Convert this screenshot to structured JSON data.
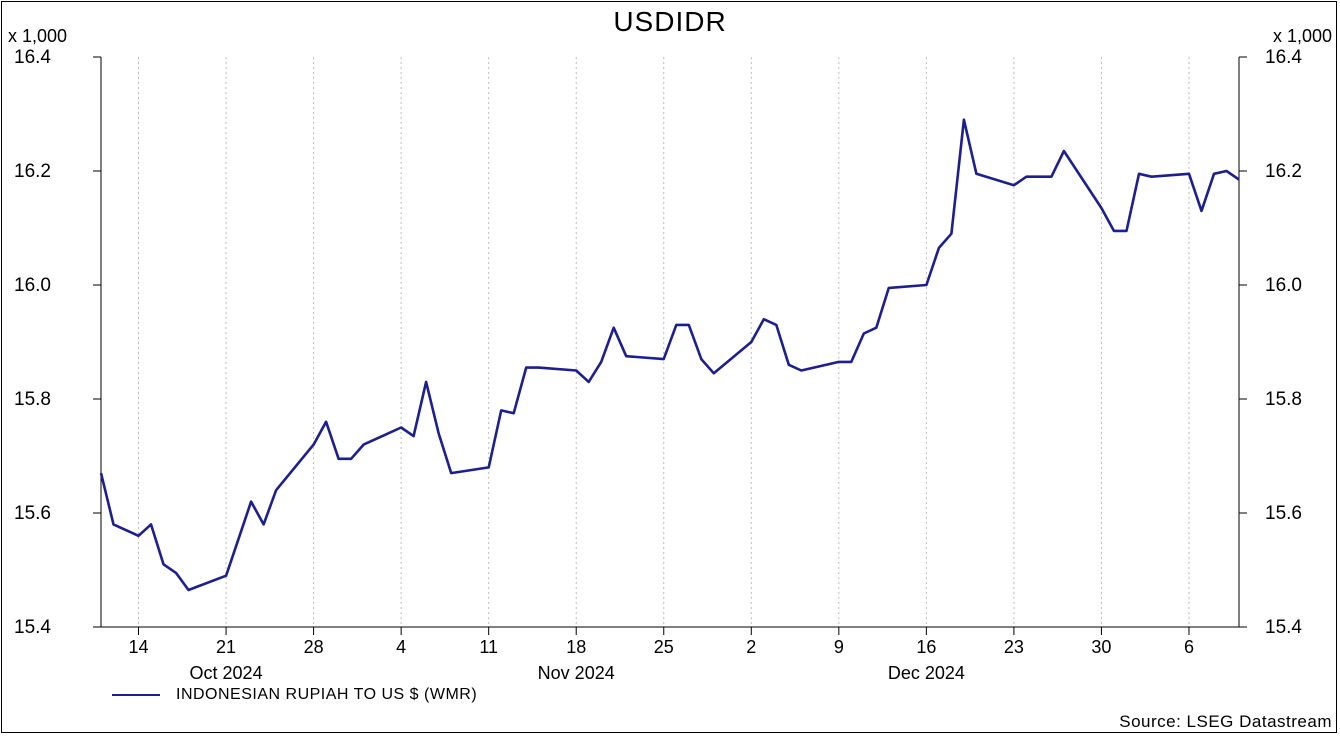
{
  "chart_data": {
    "type": "line",
    "title": "USDIDR",
    "y_multiplier_label": "x 1,000",
    "ylim": [
      15.4,
      16.4
    ],
    "y_ticks": [
      "15.4",
      "15.6",
      "15.8",
      "16.0",
      "16.2",
      "16.4"
    ],
    "grid": "vertical",
    "x_ticks": [
      {
        "date": "2024-10-14",
        "label": "14"
      },
      {
        "date": "2024-10-21",
        "label": "21"
      },
      {
        "date": "2024-10-28",
        "label": "28"
      },
      {
        "date": "2024-11-04",
        "label": "4"
      },
      {
        "date": "2024-11-11",
        "label": "11"
      },
      {
        "date": "2024-11-18",
        "label": "18"
      },
      {
        "date": "2024-11-25",
        "label": "25"
      },
      {
        "date": "2024-12-02",
        "label": "2"
      },
      {
        "date": "2024-12-09",
        "label": "9"
      },
      {
        "date": "2024-12-16",
        "label": "16"
      },
      {
        "date": "2024-12-23",
        "label": "23"
      },
      {
        "date": "2024-12-30",
        "label": "30"
      },
      {
        "date": "2025-01-06",
        "label": "6"
      }
    ],
    "month_labels": [
      {
        "date": "2024-10-21",
        "label": "Oct 2024"
      },
      {
        "date": "2024-11-18",
        "label": "Nov 2024"
      },
      {
        "date": "2024-12-16",
        "label": "Dec 2024"
      }
    ],
    "series": [
      {
        "name": "INDONESIAN RUPIAH TO US $ (WMR)",
        "color": "#1c1f8f",
        "points": [
          [
            "2024-10-11",
            15.67
          ],
          [
            "2024-10-12",
            15.58
          ],
          [
            "2024-10-14",
            15.56
          ],
          [
            "2024-10-15",
            15.58
          ],
          [
            "2024-10-16",
            15.51
          ],
          [
            "2024-10-17",
            15.495
          ],
          [
            "2024-10-18",
            15.465
          ],
          [
            "2024-10-21",
            15.49
          ],
          [
            "2024-10-22",
            15.555
          ],
          [
            "2024-10-23",
            15.62
          ],
          [
            "2024-10-24",
            15.58
          ],
          [
            "2024-10-25",
            15.64
          ],
          [
            "2024-10-28",
            15.72
          ],
          [
            "2024-10-29",
            15.76
          ],
          [
            "2024-10-30",
            15.695
          ],
          [
            "2024-10-31",
            15.695
          ],
          [
            "2024-11-01",
            15.72
          ],
          [
            "2024-11-04",
            15.75
          ],
          [
            "2024-11-05",
            15.735
          ],
          [
            "2024-11-06",
            15.83
          ],
          [
            "2024-11-07",
            15.74
          ],
          [
            "2024-11-08",
            15.67
          ],
          [
            "2024-11-11",
            15.68
          ],
          [
            "2024-11-12",
            15.78
          ],
          [
            "2024-11-13",
            15.775
          ],
          [
            "2024-11-14",
            15.855
          ],
          [
            "2024-11-15",
            15.855
          ],
          [
            "2024-11-18",
            15.85
          ],
          [
            "2024-11-19",
            15.83
          ],
          [
            "2024-11-20",
            15.865
          ],
          [
            "2024-11-21",
            15.925
          ],
          [
            "2024-11-22",
            15.875
          ],
          [
            "2024-11-25",
            15.87
          ],
          [
            "2024-11-26",
            15.93
          ],
          [
            "2024-11-27",
            15.93
          ],
          [
            "2024-11-28",
            15.87
          ],
          [
            "2024-11-29",
            15.845
          ],
          [
            "2024-12-02",
            15.9
          ],
          [
            "2024-12-03",
            15.94
          ],
          [
            "2024-12-04",
            15.93
          ],
          [
            "2024-12-05",
            15.86
          ],
          [
            "2024-12-06",
            15.85
          ],
          [
            "2024-12-09",
            15.865
          ],
          [
            "2024-12-10",
            15.865
          ],
          [
            "2024-12-11",
            15.915
          ],
          [
            "2024-12-12",
            15.925
          ],
          [
            "2024-12-13",
            15.995
          ],
          [
            "2024-12-16",
            16.0
          ],
          [
            "2024-12-17",
            16.065
          ],
          [
            "2024-12-18",
            16.09
          ],
          [
            "2024-12-19",
            16.29
          ],
          [
            "2024-12-20",
            16.195
          ],
          [
            "2024-12-23",
            16.175
          ],
          [
            "2024-12-24",
            16.19
          ],
          [
            "2024-12-25",
            16.19
          ],
          [
            "2024-12-26",
            16.19
          ],
          [
            "2024-12-27",
            16.235
          ],
          [
            "2024-12-30",
            16.135
          ],
          [
            "2024-12-31",
            16.095
          ],
          [
            "2025-01-01",
            16.095
          ],
          [
            "2025-01-02",
            16.195
          ],
          [
            "2025-01-03",
            16.19
          ],
          [
            "2025-01-06",
            16.195
          ],
          [
            "2025-01-07",
            16.13
          ],
          [
            "2025-01-08",
            16.195
          ],
          [
            "2025-01-09",
            16.2
          ],
          [
            "2025-01-10",
            16.185
          ]
        ]
      }
    ],
    "source": "Source: LSEG Datastream"
  }
}
